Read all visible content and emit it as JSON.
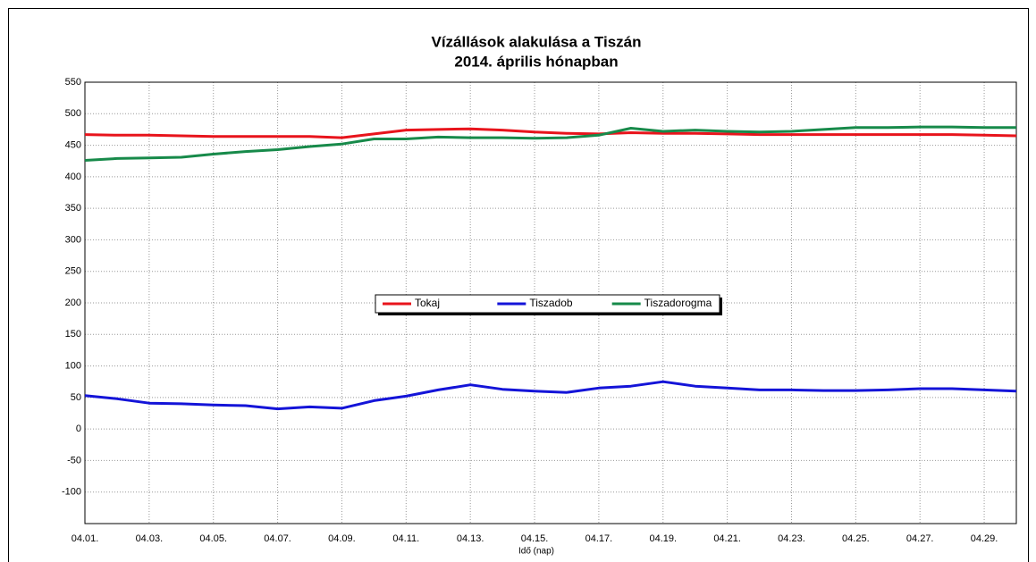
{
  "chart_data": {
    "type": "line",
    "title": "Vízállások alakulása a Tiszán",
    "subtitle": "2014. április hónapban",
    "x_label": "Idő (nap)",
    "categories": [
      "04.01.",
      null,
      "04.03.",
      null,
      "04.05.",
      null,
      "04.07.",
      null,
      "04.09.",
      null,
      "04.11.",
      null,
      "04.13.",
      null,
      "04.15.",
      null,
      "04.17.",
      null,
      "04.19.",
      null,
      "04.21.",
      null,
      "04.23.",
      null,
      "04.25.",
      null,
      "04.27.",
      null,
      "04.29.",
      null
    ],
    "series": [
      {
        "name": "Tokaj",
        "color": "#e8141c",
        "values": [
          467,
          466,
          466,
          465,
          464,
          464,
          464,
          464,
          462,
          468,
          474,
          475,
          476,
          474,
          471,
          469,
          468,
          470,
          469,
          469,
          468,
          467,
          467,
          467,
          467,
          467,
          467,
          467,
          466,
          465
        ]
      },
      {
        "name": "Tiszadob",
        "color": "#1414d8",
        "values": [
          53,
          48,
          41,
          40,
          38,
          37,
          32,
          35,
          33,
          45,
          52,
          62,
          70,
          63,
          60,
          58,
          65,
          68,
          75,
          68,
          65,
          62,
          62,
          61,
          61,
          62,
          64,
          64,
          62,
          60
        ]
      },
      {
        "name": "Tiszadorogma",
        "color": "#178a4a",
        "values": [
          426,
          429,
          430,
          431,
          436,
          440,
          443,
          448,
          452,
          460,
          460,
          463,
          462,
          462,
          461,
          462,
          466,
          477,
          472,
          474,
          472,
          471,
          472,
          475,
          478,
          478,
          479,
          479,
          478,
          478
        ]
      }
    ],
    "ylim": [
      -150,
      550
    ],
    "yticks": [
      -100,
      -50,
      0,
      50,
      100,
      150,
      200,
      250,
      300,
      350,
      400,
      450,
      500,
      550
    ],
    "grid": true,
    "legend": "center"
  }
}
